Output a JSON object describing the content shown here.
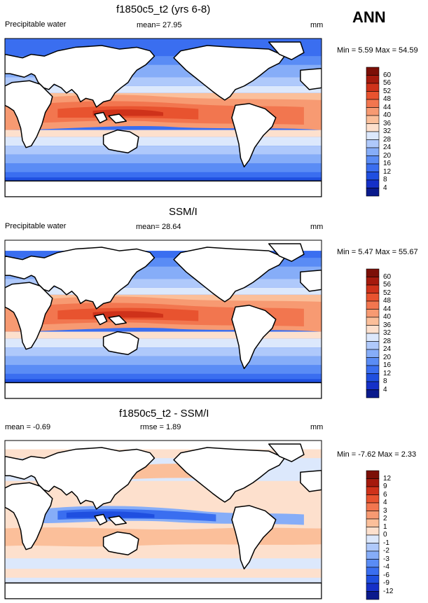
{
  "season": "ANN",
  "panels": [
    {
      "title": "f1850c5_t2 (yrs 6-8)",
      "left_label": "Precipitable water",
      "center_label": "mean=  27.95",
      "units": "mm",
      "minmax": "Min =   5.59 Max =  54.59",
      "colorbar": [
        "60",
        "56",
        "52",
        "48",
        "44",
        "40",
        "36",
        "32",
        "28",
        "24",
        "20",
        "16",
        "12",
        "8",
        "4"
      ]
    },
    {
      "title": "SSM/I",
      "left_label": "Precipitable water",
      "center_label": "mean=  28.64",
      "units": "mm",
      "minmax": "Min =   5.47 Max =  55.67",
      "colorbar": [
        "60",
        "56",
        "52",
        "48",
        "44",
        "40",
        "36",
        "32",
        "28",
        "24",
        "20",
        "16",
        "12",
        "8",
        "4"
      ]
    },
    {
      "title": "f1850c5_t2 - SSM/I",
      "left_label": "mean =  -0.69",
      "center_label": "rmse =   1.89",
      "units": "mm",
      "minmax": "Min =  -7.62 Max =   2.33",
      "colorbar": [
        "12",
        "9",
        "6",
        "4",
        "3",
        "2",
        "1",
        "0",
        "-1",
        "-2",
        "-3",
        "-4",
        "-6",
        "-9",
        "-12"
      ]
    }
  ],
  "colors": {
    "abs": [
      "#0a1a8c",
      "#1530c8",
      "#1f4fe0",
      "#3a6ef0",
      "#5a8cf5",
      "#86adf8",
      "#afc9fb",
      "#dce8fc",
      "#fde0cd",
      "#fbbf9a",
      "#f79a72",
      "#f2764f",
      "#e8532f",
      "#cf321a",
      "#a51a0d",
      "#7c0f07"
    ],
    "diff": [
      "#0a1a8c",
      "#1530c8",
      "#1f4fe0",
      "#3a6ef0",
      "#5a8cf5",
      "#86adf8",
      "#afc9fb",
      "#dce8fc",
      "#fde0cd",
      "#fbbf9a",
      "#f79a72",
      "#f2764f",
      "#e8532f",
      "#cf321a",
      "#a51a0d",
      "#7c0f07"
    ]
  },
  "chart_data": [
    {
      "type": "heatmap",
      "title": "f1850c5_t2 (yrs 6-8)",
      "variable": "Precipitable water",
      "units": "mm",
      "mean": 27.95,
      "min": 5.59,
      "max": 54.59,
      "levels": [
        4,
        8,
        12,
        16,
        20,
        24,
        28,
        32,
        36,
        40,
        44,
        48,
        52,
        56,
        60
      ]
    },
    {
      "type": "heatmap",
      "title": "SSM/I",
      "variable": "Precipitable water",
      "units": "mm",
      "mean": 28.64,
      "min": 5.47,
      "max": 55.67,
      "levels": [
        4,
        8,
        12,
        16,
        20,
        24,
        28,
        32,
        36,
        40,
        44,
        48,
        52,
        56,
        60
      ]
    },
    {
      "type": "heatmap",
      "title": "f1850c5_t2 - SSM/I",
      "units": "mm",
      "mean": -0.69,
      "rmse": 1.89,
      "min": -7.62,
      "max": 2.33,
      "levels": [
        -12,
        -9,
        -6,
        -4,
        -3,
        -2,
        -1,
        0,
        1,
        2,
        3,
        4,
        6,
        9,
        12
      ]
    }
  ]
}
